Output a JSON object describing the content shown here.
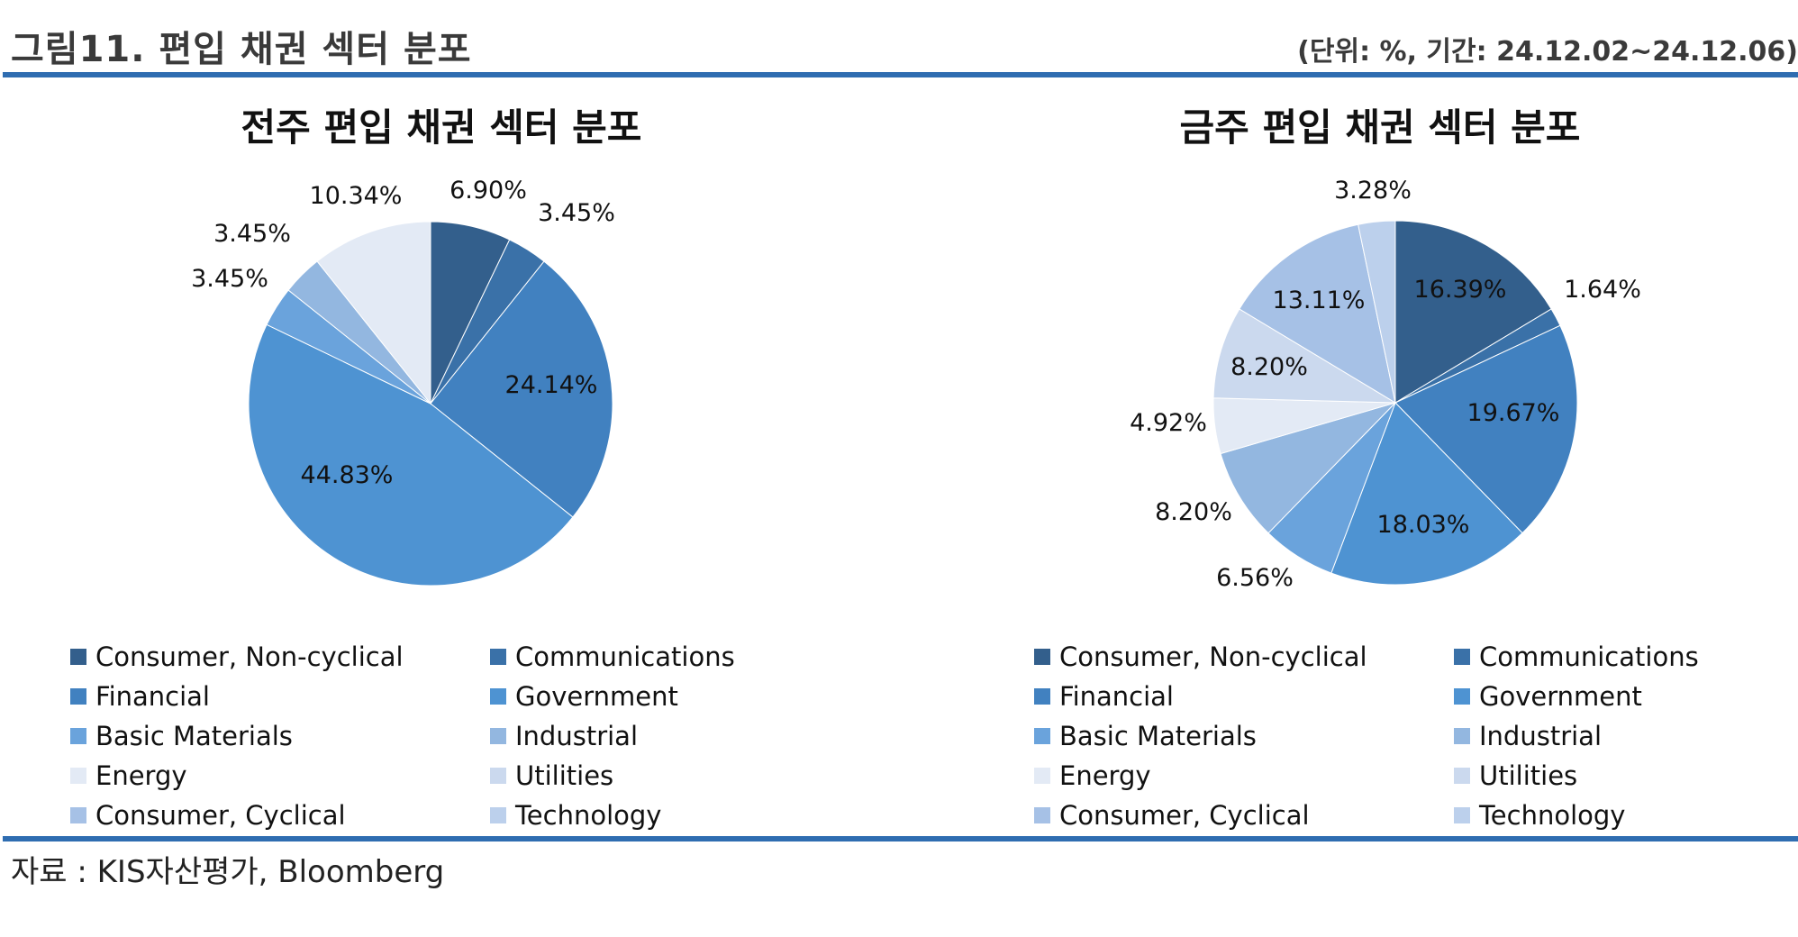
{
  "header": {
    "figure_title": "그림11. 편입 채권 섹터 분포",
    "unit_note": "(단위: %, 기간: 24.12.02~24.12.06)"
  },
  "footer": {
    "source": "자료 : KIS자산평가, Bloomberg"
  },
  "colors": {
    "Consumer, Non-cyclical": "#335f8c",
    "Communications": "#3a71a8",
    "Financial": "#4181c0",
    "Government": "#4e93d2",
    "Basic Materials": "#6aa3dc",
    "Industrial": "#93b7e0",
    "Energy": "#e3eaf5",
    "Utilities": "#cbd9ee",
    "Consumer, Cyclical": "#a6c1e6",
    "Technology": "#bcd0ec"
  },
  "chart_data": [
    {
      "type": "pie",
      "title": "전주 편입 채권 섹터 분포",
      "categories": [
        "Consumer, Non-cyclical",
        "Communications",
        "Financial",
        "Government",
        "Basic Materials",
        "Industrial",
        "Energy",
        "Utilities",
        "Consumer, Cyclical",
        "Technology"
      ],
      "values": [
        6.9,
        3.45,
        24.14,
        44.83,
        3.45,
        3.45,
        10.34,
        0,
        0,
        0
      ],
      "data_labels": [
        "6.90%",
        "3.45%",
        "24.14%",
        "44.83%",
        "3.45%",
        "3.45%",
        "10.34%",
        "",
        "",
        ""
      ],
      "start_angle_deg": 0,
      "direction": "clockwise",
      "legend": "bottom"
    },
    {
      "type": "pie",
      "title": "금주 편입 채권 섹터 분포",
      "categories": [
        "Consumer, Non-cyclical",
        "Communications",
        "Financial",
        "Government",
        "Basic Materials",
        "Industrial",
        "Energy",
        "Utilities",
        "Consumer, Cyclical",
        "Technology"
      ],
      "values": [
        16.39,
        1.64,
        19.67,
        18.03,
        6.56,
        8.2,
        4.92,
        8.2,
        13.11,
        3.28
      ],
      "data_labels": [
        "16.39%",
        "1.64%",
        "19.67%",
        "18.03%",
        "6.56%",
        "8.20%",
        "4.92%",
        "8.20%",
        "13.11%",
        "3.28%"
      ],
      "start_angle_deg": 0,
      "direction": "clockwise",
      "legend": "bottom"
    }
  ]
}
